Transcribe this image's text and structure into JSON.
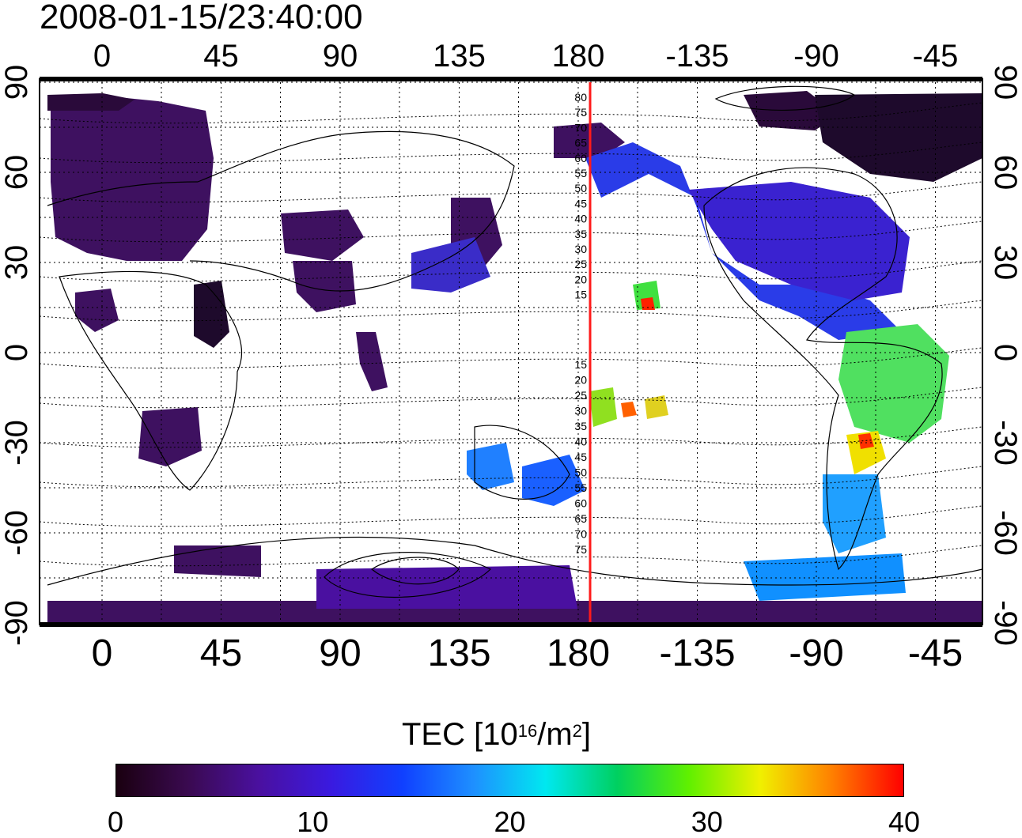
{
  "title": "2008-01-15/23:40:00",
  "map": {
    "projection": "equirectangular, central longitude 157.5",
    "lon_ticks": [
      "0",
      "45",
      "90",
      "135",
      "180",
      "-135",
      "-90",
      "-45"
    ],
    "lat_ticks_left": [
      "90",
      "60",
      "30",
      "0",
      "-30",
      "-60",
      "-90"
    ],
    "lat_ticks_right": [
      "90",
      "60",
      "30",
      "0",
      "-30",
      "-60",
      "-90"
    ],
    "red_line_lon": -177.5,
    "grid": true,
    "geomagnetic_labels_north": [
      "80",
      "75",
      "70",
      "65",
      "60",
      "55",
      "50",
      "45",
      "40",
      "35",
      "30",
      "25",
      "20",
      "15"
    ],
    "geomagnetic_labels_south": [
      "15",
      "20",
      "25",
      "30",
      "35",
      "40",
      "45",
      "50",
      "55",
      "60",
      "65",
      "70",
      "75"
    ],
    "line_color": "#ff1a1a"
  },
  "colorbar": {
    "label_main": "TEC  [10",
    "label_exp1": "16",
    "label_mid": "/m",
    "label_exp2": "2",
    "label_end": "]",
    "min": 0,
    "max": 40,
    "ticks": [
      "0",
      "10",
      "20",
      "30",
      "40"
    ],
    "colors": [
      "#1a0010",
      "#3a0a50",
      "#4a10a0",
      "#3a1ae0",
      "#1040ff",
      "#1e90ff",
      "#00e8f0",
      "#00d060",
      "#60f000",
      "#f0f000",
      "#ff8000",
      "#ff0000"
    ]
  }
}
